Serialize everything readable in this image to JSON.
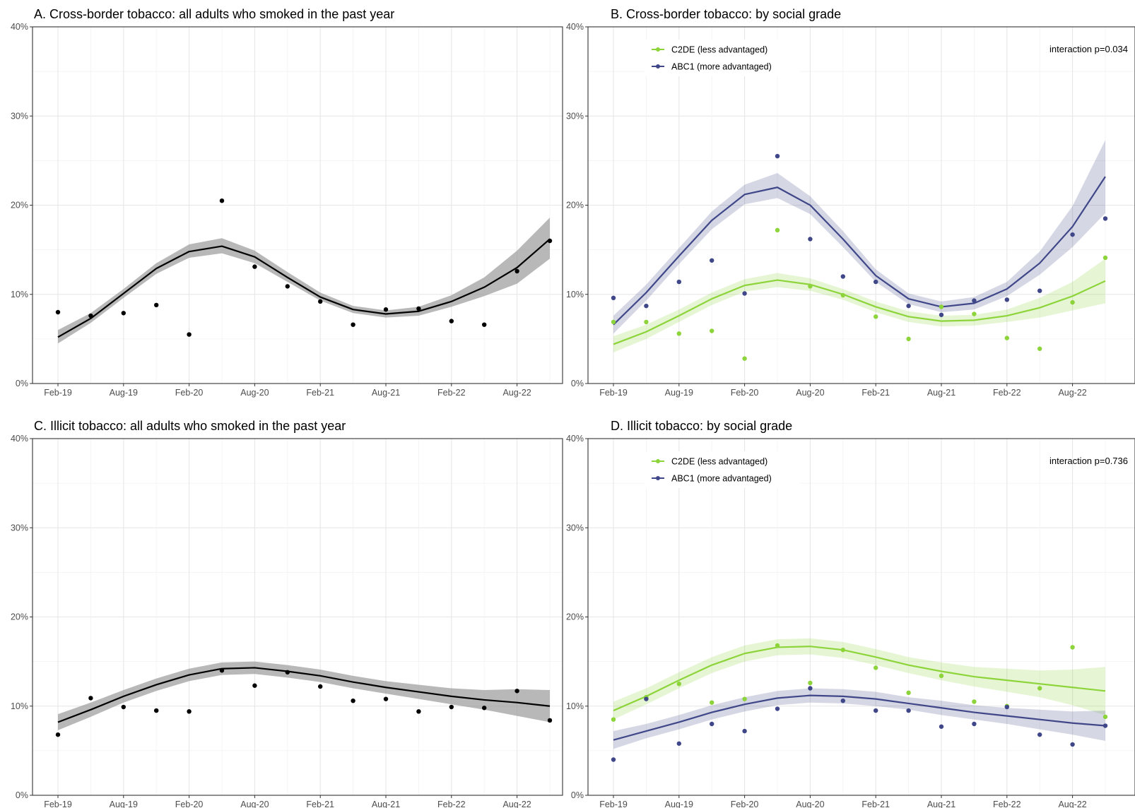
{
  "chart_data": [
    {
      "type": "line",
      "title": "A. Cross-border tobacco: all adults who smoked in the past year",
      "xlabel": "",
      "ylabel": "",
      "x_tick_labels": [
        "Feb-19",
        "Aug-19",
        "Feb-20",
        "Aug-20",
        "Feb-21",
        "Aug-21",
        "Feb-22",
        "Aug-22"
      ],
      "y_tick_labels": [
        "0%",
        "10%",
        "20%",
        "30%",
        "40%"
      ],
      "ylim": [
        0,
        40
      ],
      "grid": true,
      "legend": [],
      "annotation": "",
      "x": [
        "2019-02",
        "2019-05",
        "2019-08",
        "2019-11",
        "2020-02",
        "2020-05",
        "2020-08",
        "2020-11",
        "2021-02",
        "2021-05",
        "2021-08",
        "2021-11",
        "2022-02",
        "2022-05",
        "2022-08",
        "2022-11"
      ],
      "series": [
        {
          "color": "#000000",
          "band_color": "#9a9a9a",
          "points": [
            8.0,
            7.6,
            7.9,
            8.8,
            5.5,
            20.5,
            13.1,
            10.9,
            9.2,
            6.6,
            8.3,
            8.4,
            7.0,
            6.6,
            12.6,
            16.0
          ],
          "fit": [
            5.2,
            7.3,
            10.1,
            12.9,
            14.8,
            15.4,
            14.2,
            11.9,
            9.7,
            8.3,
            7.8,
            8.1,
            9.2,
            10.8,
            13.0,
            16.2
          ],
          "band_lower": [
            4.5,
            6.8,
            9.6,
            12.3,
            14.1,
            14.6,
            13.5,
            11.4,
            9.3,
            7.9,
            7.4,
            7.6,
            8.6,
            9.8,
            11.2,
            14.0
          ],
          "band_upper": [
            6.0,
            7.9,
            10.6,
            13.5,
            15.6,
            16.3,
            14.9,
            12.5,
            10.2,
            8.7,
            8.2,
            8.6,
            9.9,
            11.9,
            14.9,
            18.6
          ]
        }
      ]
    },
    {
      "type": "line",
      "title": "B. Cross-border tobacco: by social grade",
      "xlabel": "",
      "ylabel": "",
      "x_tick_labels": [
        "Feb-19",
        "Aug-19",
        "Feb-20",
        "Aug-20",
        "Feb-21",
        "Aug-21",
        "Feb-22",
        "Aug-22"
      ],
      "y_tick_labels": [
        "0%",
        "10%",
        "20%",
        "30%",
        "40%"
      ],
      "ylim": [
        0,
        40
      ],
      "grid": true,
      "legend": [
        "C2DE (less advantaged)",
        "ABC1 (more advantaged)"
      ],
      "legend_position": "top-left",
      "annotation": "interaction p=0.034",
      "x": [
        "2019-02",
        "2019-05",
        "2019-08",
        "2019-11",
        "2020-02",
        "2020-05",
        "2020-08",
        "2020-11",
        "2021-02",
        "2021-05",
        "2021-08",
        "2021-11",
        "2022-02",
        "2022-05",
        "2022-08",
        "2022-11"
      ],
      "series": [
        {
          "name": "C2DE (less advantaged)",
          "color": "#8cd43a",
          "band_color": "#8cd43a",
          "points": [
            6.9,
            6.9,
            5.6,
            5.9,
            2.8,
            17.2,
            10.9,
            9.9,
            7.5,
            5.0,
            8.6,
            7.8,
            5.1,
            3.9,
            9.1,
            14.1
          ],
          "fit": [
            4.4,
            5.8,
            7.6,
            9.5,
            11.0,
            11.6,
            11.1,
            10.0,
            8.6,
            7.5,
            7.0,
            7.1,
            7.6,
            8.5,
            9.8,
            11.5
          ],
          "band_lower": [
            3.5,
            5.0,
            6.9,
            8.8,
            10.3,
            10.8,
            10.4,
            9.4,
            8.0,
            6.9,
            6.4,
            6.5,
            6.9,
            7.4,
            8.2,
            9.0
          ],
          "band_upper": [
            5.3,
            6.6,
            8.3,
            10.2,
            11.7,
            12.4,
            11.8,
            10.6,
            9.2,
            8.1,
            7.6,
            7.7,
            8.3,
            9.6,
            11.4,
            14.0
          ]
        },
        {
          "name": "ABC1 (more advantaged)",
          "color": "#3f4788",
          "band_color": "#3f4788",
          "points": [
            9.6,
            8.7,
            11.4,
            13.8,
            10.1,
            25.5,
            16.2,
            12.0,
            11.4,
            8.7,
            7.7,
            9.3,
            9.4,
            10.4,
            16.7,
            18.5
          ],
          "fit": [
            6.6,
            10.2,
            14.3,
            18.3,
            21.2,
            22.0,
            20.0,
            16.2,
            12.1,
            9.5,
            8.6,
            9.0,
            10.6,
            13.5,
            17.6,
            23.2
          ],
          "band_lower": [
            5.6,
            9.3,
            13.4,
            17.3,
            20.1,
            20.8,
            19.0,
            15.3,
            11.4,
            8.9,
            8.0,
            8.3,
            9.8,
            12.2,
            15.3,
            19.1
          ],
          "band_upper": [
            7.6,
            11.1,
            15.2,
            19.3,
            22.3,
            23.6,
            21.0,
            17.1,
            12.8,
            10.1,
            9.2,
            9.7,
            11.4,
            14.8,
            19.9,
            27.3
          ]
        }
      ]
    },
    {
      "type": "line",
      "title": "C. Illicit tobacco: all adults who smoked in the past year",
      "xlabel": "",
      "ylabel": "",
      "x_tick_labels": [
        "Feb-19",
        "Aug-19",
        "Feb-20",
        "Aug-20",
        "Feb-21",
        "Aug-21",
        "Feb-22",
        "Aug-22"
      ],
      "y_tick_labels": [
        "0%",
        "10%",
        "20%",
        "30%",
        "40%"
      ],
      "ylim": [
        0,
        40
      ],
      "grid": true,
      "legend": [],
      "annotation": "",
      "x": [
        "2019-02",
        "2019-05",
        "2019-08",
        "2019-11",
        "2020-02",
        "2020-05",
        "2020-08",
        "2020-11",
        "2021-02",
        "2021-05",
        "2021-08",
        "2021-11",
        "2022-02",
        "2022-05",
        "2022-08",
        "2022-11"
      ],
      "series": [
        {
          "color": "#000000",
          "band_color": "#9a9a9a",
          "points": [
            6.8,
            10.9,
            9.9,
            9.5,
            9.4,
            14.0,
            12.3,
            13.8,
            12.2,
            10.6,
            10.8,
            9.4,
            9.9,
            9.8,
            11.7,
            8.4
          ],
          "fit": [
            8.2,
            9.6,
            11.1,
            12.4,
            13.5,
            14.2,
            14.3,
            13.9,
            13.4,
            12.7,
            12.1,
            11.6,
            11.1,
            10.7,
            10.4,
            10.0
          ],
          "band_lower": [
            7.3,
            8.8,
            10.4,
            11.7,
            12.8,
            13.5,
            13.6,
            13.2,
            12.7,
            12.0,
            11.4,
            10.8,
            10.2,
            9.6,
            8.9,
            8.2
          ],
          "band_upper": [
            9.1,
            10.4,
            11.8,
            13.1,
            14.2,
            14.9,
            15.0,
            14.6,
            14.1,
            13.4,
            12.8,
            12.4,
            12.0,
            11.8,
            11.9,
            11.8
          ]
        }
      ]
    },
    {
      "type": "line",
      "title": "D. Illicit tobacco: by social grade",
      "xlabel": "",
      "ylabel": "",
      "x_tick_labels": [
        "Feb-19",
        "Aug-19",
        "Feb-20",
        "Aug-20",
        "Feb-21",
        "Aug-21",
        "Feb-22",
        "Aug-22"
      ],
      "y_tick_labels": [
        "0%",
        "10%",
        "20%",
        "30%",
        "40%"
      ],
      "ylim": [
        0,
        40
      ],
      "grid": true,
      "legend": [
        "C2DE (less advantaged)",
        "ABC1 (more advantaged)"
      ],
      "legend_position": "top-left",
      "annotation": "interaction p=0.736",
      "x": [
        "2019-02",
        "2019-05",
        "2019-08",
        "2019-11",
        "2020-02",
        "2020-05",
        "2020-08",
        "2020-11",
        "2021-02",
        "2021-05",
        "2021-08",
        "2021-11",
        "2022-02",
        "2022-05",
        "2022-08",
        "2022-11"
      ],
      "series": [
        {
          "name": "C2DE (less advantaged)",
          "color": "#8cd43a",
          "band_color": "#8cd43a",
          "points": [
            8.5,
            11.0,
            12.5,
            10.4,
            10.8,
            16.8,
            12.6,
            16.3,
            14.3,
            11.5,
            13.4,
            10.5,
            10.0,
            12.0,
            16.6,
            8.8
          ],
          "fit": [
            9.5,
            11.1,
            12.9,
            14.6,
            15.9,
            16.6,
            16.7,
            16.3,
            15.5,
            14.6,
            13.9,
            13.3,
            12.9,
            12.5,
            12.1,
            11.7
          ],
          "band_lower": [
            8.5,
            10.2,
            12.0,
            13.7,
            15.0,
            15.7,
            15.8,
            15.4,
            14.6,
            13.7,
            12.9,
            12.2,
            11.6,
            11.0,
            10.1,
            9.0
          ],
          "band_upper": [
            10.5,
            12.0,
            13.8,
            15.5,
            16.8,
            17.5,
            17.6,
            17.2,
            16.4,
            15.5,
            14.9,
            14.4,
            14.2,
            14.0,
            14.1,
            14.4
          ]
        },
        {
          "name": "ABC1 (more advantaged)",
          "color": "#3f4788",
          "band_color": "#3f4788",
          "points": [
            4.0,
            10.8,
            5.8,
            8.0,
            7.2,
            9.7,
            12.0,
            10.6,
            9.5,
            9.5,
            7.7,
            8.0,
            9.9,
            6.8,
            5.7,
            7.8
          ],
          "fit": [
            6.2,
            7.2,
            8.2,
            9.3,
            10.2,
            10.9,
            11.2,
            11.1,
            10.8,
            10.3,
            9.8,
            9.3,
            8.9,
            8.5,
            8.1,
            7.8
          ],
          "band_lower": [
            5.2,
            6.4,
            7.4,
            8.5,
            9.4,
            10.1,
            10.4,
            10.3,
            10.0,
            9.6,
            9.0,
            8.5,
            8.0,
            7.4,
            6.8,
            6.1
          ],
          "band_upper": [
            7.2,
            8.0,
            9.0,
            10.1,
            11.0,
            11.7,
            12.0,
            11.9,
            11.6,
            11.0,
            10.6,
            10.1,
            9.8,
            9.6,
            9.4,
            9.5
          ]
        }
      ]
    }
  ]
}
